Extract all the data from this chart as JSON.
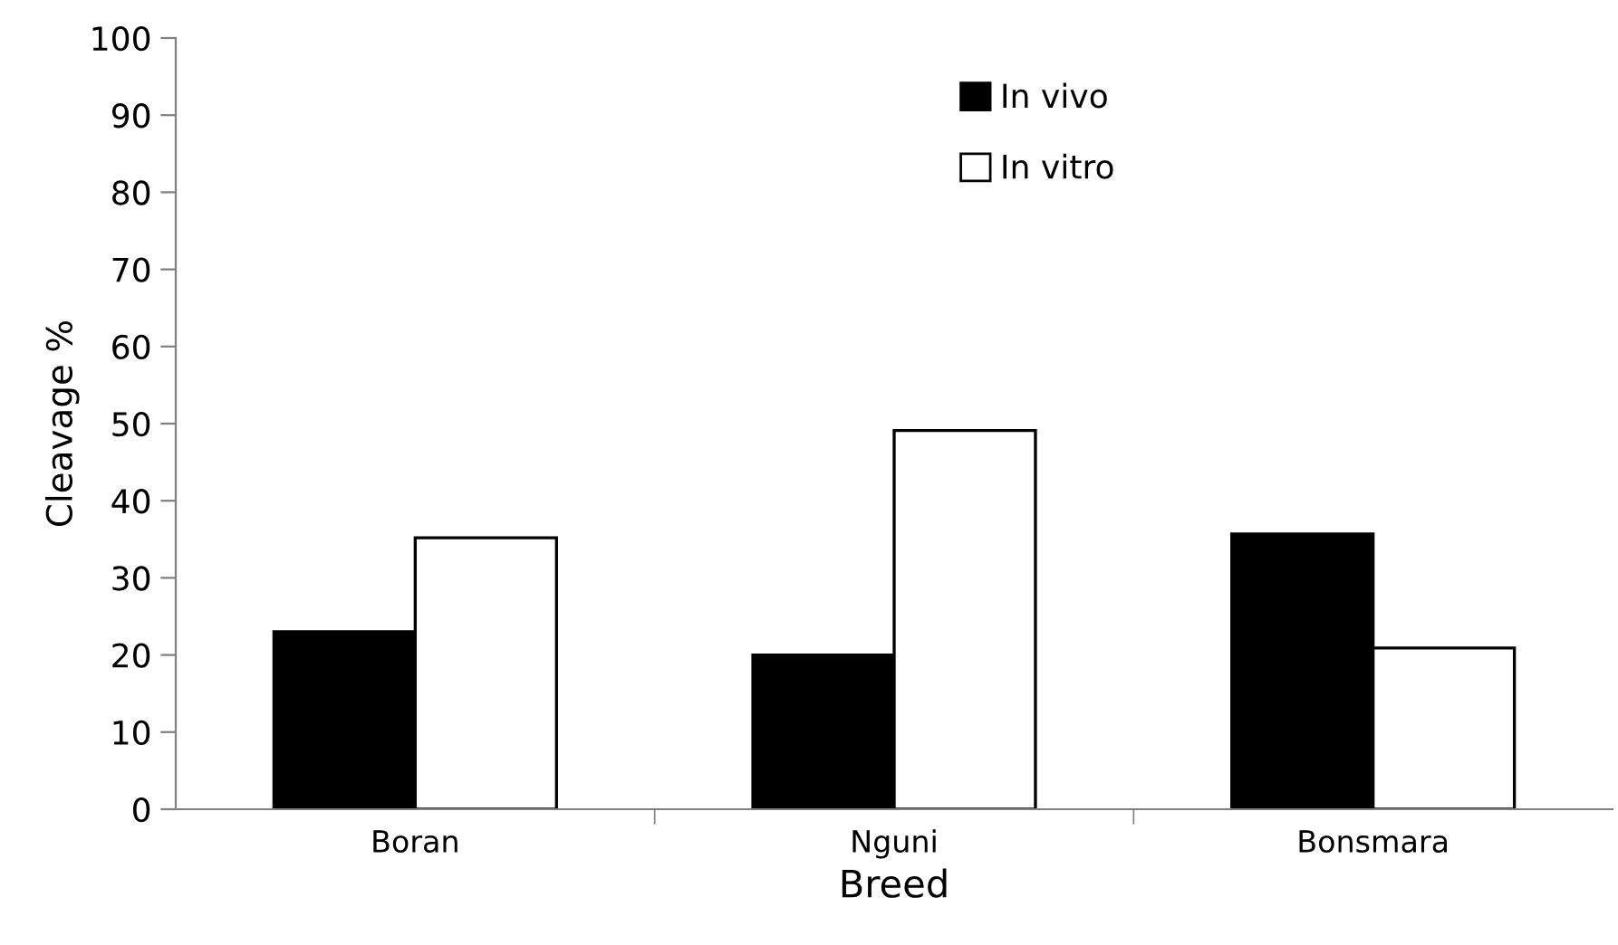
{
  "chart_data": {
    "type": "bar",
    "xlabel": "Breed",
    "ylabel": "Cleavage %",
    "categories": [
      "Boran",
      "Nguni",
      "Bonsmara"
    ],
    "series": [
      {
        "name": "In vivo",
        "color": "#000000",
        "values": [
          23,
          20,
          35.7
        ]
      },
      {
        "name": "In vitro",
        "color": "#ffffff",
        "values": [
          35.2,
          49.1,
          20.9
        ]
      }
    ],
    "ylim": [
      0,
      100
    ],
    "yticks": [
      0,
      10,
      20,
      30,
      40,
      50,
      60,
      70,
      80,
      90,
      100
    ],
    "grid": false,
    "legend": "top"
  }
}
